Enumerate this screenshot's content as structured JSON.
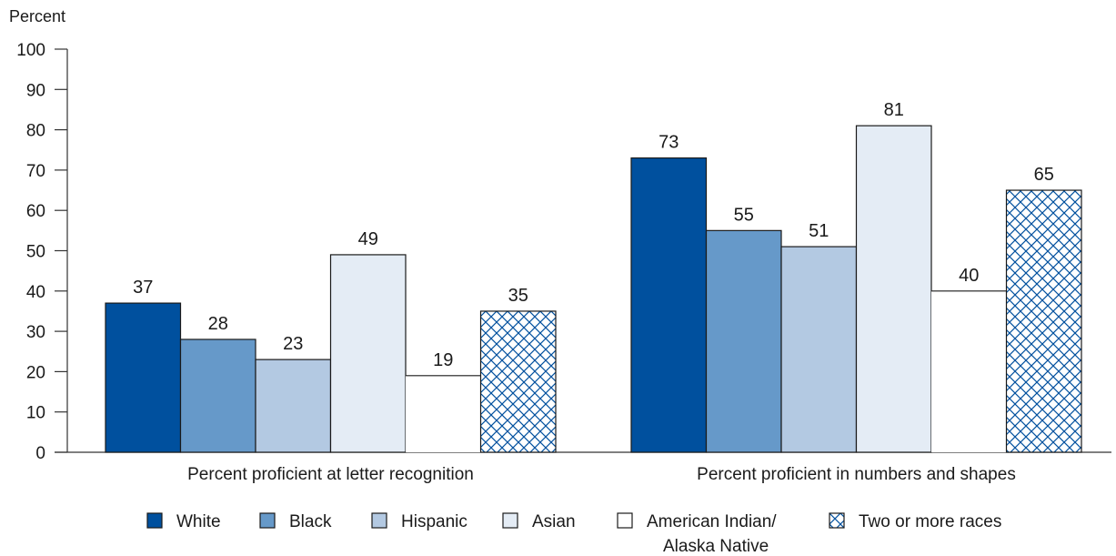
{
  "chart_data": {
    "type": "bar",
    "ylabel": "Percent",
    "xlabel": "",
    "ylim": [
      0,
      100
    ],
    "yticks": [
      0,
      10,
      20,
      30,
      40,
      50,
      60,
      70,
      80,
      90,
      100
    ],
    "categories": [
      "Percent proficient at letter recognition",
      "Percent proficient in numbers and shapes"
    ],
    "series": [
      {
        "name": "White",
        "values": [
          37,
          73
        ],
        "color": "#00509e",
        "pattern": "solid"
      },
      {
        "name": "Black",
        "values": [
          28,
          55
        ],
        "color": "#6699c9",
        "pattern": "solid"
      },
      {
        "name": "Hispanic",
        "values": [
          23,
          51
        ],
        "color": "#b3c9e2",
        "pattern": "solid"
      },
      {
        "name": "Asian",
        "values": [
          49,
          81
        ],
        "color": "#e4ecf5",
        "pattern": "solid"
      },
      {
        "name": "American Indian/ Alaska Native",
        "legend_lines": [
          "American Indian/",
          "Alaska Native"
        ],
        "values": [
          19,
          40
        ],
        "color": "#ffffff",
        "pattern": "none"
      },
      {
        "name": "Two or more races",
        "values": [
          35,
          65
        ],
        "color": "#00509e",
        "pattern": "crosshatch"
      }
    ],
    "legend_position": "bottom",
    "grid": false
  }
}
